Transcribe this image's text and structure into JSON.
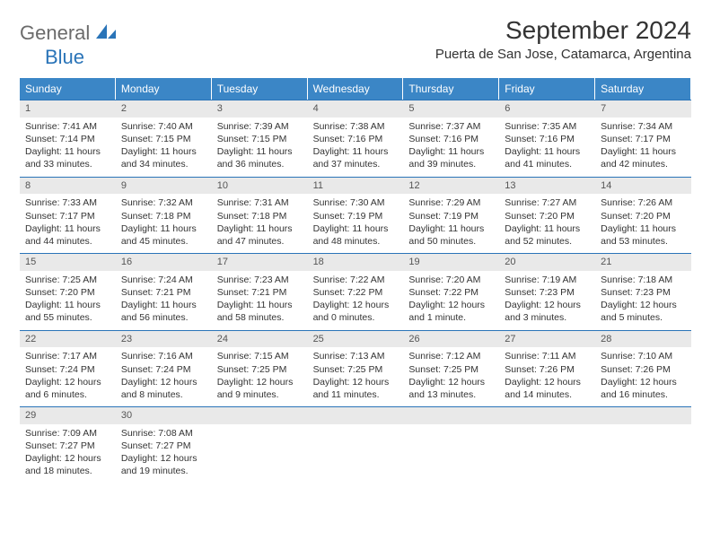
{
  "logo": {
    "text1": "General",
    "text2": "Blue"
  },
  "title": "September 2024",
  "location": "Puerta de San Jose, Catamarca, Argentina",
  "colors": {
    "header_bg": "#3b86c6",
    "border": "#2a74b8",
    "daynum_bg": "#e9e9e9",
    "logo_gray": "#6b6b6b",
    "logo_blue": "#2a74b8"
  },
  "dow": [
    "Sunday",
    "Monday",
    "Tuesday",
    "Wednesday",
    "Thursday",
    "Friday",
    "Saturday"
  ],
  "days": [
    {
      "n": "1",
      "sr": "7:41 AM",
      "ss": "7:14 PM",
      "dl": "11 hours and 33 minutes."
    },
    {
      "n": "2",
      "sr": "7:40 AM",
      "ss": "7:15 PM",
      "dl": "11 hours and 34 minutes."
    },
    {
      "n": "3",
      "sr": "7:39 AM",
      "ss": "7:15 PM",
      "dl": "11 hours and 36 minutes."
    },
    {
      "n": "4",
      "sr": "7:38 AM",
      "ss": "7:16 PM",
      "dl": "11 hours and 37 minutes."
    },
    {
      "n": "5",
      "sr": "7:37 AM",
      "ss": "7:16 PM",
      "dl": "11 hours and 39 minutes."
    },
    {
      "n": "6",
      "sr": "7:35 AM",
      "ss": "7:16 PM",
      "dl": "11 hours and 41 minutes."
    },
    {
      "n": "7",
      "sr": "7:34 AM",
      "ss": "7:17 PM",
      "dl": "11 hours and 42 minutes."
    },
    {
      "n": "8",
      "sr": "7:33 AM",
      "ss": "7:17 PM",
      "dl": "11 hours and 44 minutes."
    },
    {
      "n": "9",
      "sr": "7:32 AM",
      "ss": "7:18 PM",
      "dl": "11 hours and 45 minutes."
    },
    {
      "n": "10",
      "sr": "7:31 AM",
      "ss": "7:18 PM",
      "dl": "11 hours and 47 minutes."
    },
    {
      "n": "11",
      "sr": "7:30 AM",
      "ss": "7:19 PM",
      "dl": "11 hours and 48 minutes."
    },
    {
      "n": "12",
      "sr": "7:29 AM",
      "ss": "7:19 PM",
      "dl": "11 hours and 50 minutes."
    },
    {
      "n": "13",
      "sr": "7:27 AM",
      "ss": "7:20 PM",
      "dl": "11 hours and 52 minutes."
    },
    {
      "n": "14",
      "sr": "7:26 AM",
      "ss": "7:20 PM",
      "dl": "11 hours and 53 minutes."
    },
    {
      "n": "15",
      "sr": "7:25 AM",
      "ss": "7:20 PM",
      "dl": "11 hours and 55 minutes."
    },
    {
      "n": "16",
      "sr": "7:24 AM",
      "ss": "7:21 PM",
      "dl": "11 hours and 56 minutes."
    },
    {
      "n": "17",
      "sr": "7:23 AM",
      "ss": "7:21 PM",
      "dl": "11 hours and 58 minutes."
    },
    {
      "n": "18",
      "sr": "7:22 AM",
      "ss": "7:22 PM",
      "dl": "12 hours and 0 minutes."
    },
    {
      "n": "19",
      "sr": "7:20 AM",
      "ss": "7:22 PM",
      "dl": "12 hours and 1 minute."
    },
    {
      "n": "20",
      "sr": "7:19 AM",
      "ss": "7:23 PM",
      "dl": "12 hours and 3 minutes."
    },
    {
      "n": "21",
      "sr": "7:18 AM",
      "ss": "7:23 PM",
      "dl": "12 hours and 5 minutes."
    },
    {
      "n": "22",
      "sr": "7:17 AM",
      "ss": "7:24 PM",
      "dl": "12 hours and 6 minutes."
    },
    {
      "n": "23",
      "sr": "7:16 AM",
      "ss": "7:24 PM",
      "dl": "12 hours and 8 minutes."
    },
    {
      "n": "24",
      "sr": "7:15 AM",
      "ss": "7:25 PM",
      "dl": "12 hours and 9 minutes."
    },
    {
      "n": "25",
      "sr": "7:13 AM",
      "ss": "7:25 PM",
      "dl": "12 hours and 11 minutes."
    },
    {
      "n": "26",
      "sr": "7:12 AM",
      "ss": "7:25 PM",
      "dl": "12 hours and 13 minutes."
    },
    {
      "n": "27",
      "sr": "7:11 AM",
      "ss": "7:26 PM",
      "dl": "12 hours and 14 minutes."
    },
    {
      "n": "28",
      "sr": "7:10 AM",
      "ss": "7:26 PM",
      "dl": "12 hours and 16 minutes."
    },
    {
      "n": "29",
      "sr": "7:09 AM",
      "ss": "7:27 PM",
      "dl": "12 hours and 18 minutes."
    },
    {
      "n": "30",
      "sr": "7:08 AM",
      "ss": "7:27 PM",
      "dl": "12 hours and 19 minutes."
    }
  ],
  "labels": {
    "sunrise": "Sunrise:",
    "sunset": "Sunset:",
    "daylight": "Daylight:"
  }
}
